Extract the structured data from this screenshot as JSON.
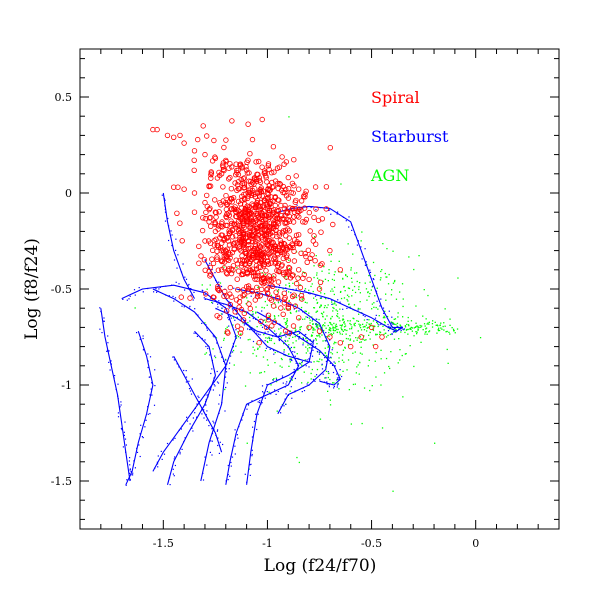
{
  "chart_data": {
    "type": "scatter",
    "title": "",
    "xlabel": "Log (f24/f70)",
    "ylabel": "Log (f8/f24)",
    "xlim": [
      -1.9,
      0.4
    ],
    "ylim": [
      -1.75,
      0.75
    ],
    "xticks": [
      -1.5,
      -1,
      -0.5,
      0
    ],
    "xtick_labels": [
      "-1.5",
      "-1",
      "-0.5",
      "0"
    ],
    "yticks": [
      0.5,
      0,
      -0.5,
      -1,
      -1.5
    ],
    "ytick_labels": [
      "0.5",
      "0",
      "-0.5",
      "-1",
      "-1.5"
    ],
    "grid": false,
    "legend_position": "top-right",
    "series": [
      {
        "name": "Spiral",
        "color": "#ff0000",
        "marker": "open-circle",
        "points": [
          [
            -1.55,
            0.33
          ],
          [
            -1.53,
            0.33
          ],
          [
            -1.48,
            0.3
          ],
          [
            -1.45,
            0.29
          ],
          [
            -1.42,
            0.3
          ],
          [
            -1.4,
            0.26
          ],
          [
            -1.35,
            0.22
          ],
          [
            -1.3,
            0.2
          ],
          [
            -1.25,
            0.18
          ],
          [
            -1.2,
            0.17
          ],
          [
            -1.15,
            0.15
          ],
          [
            -1.1,
            0.12
          ],
          [
            -1.45,
            0.03
          ],
          [
            -1.43,
            0.03
          ],
          [
            -1.4,
            0.02
          ],
          [
            -1.35,
            0.0
          ],
          [
            -1.3,
            -0.05
          ],
          [
            -1.25,
            -0.1
          ],
          [
            -1.2,
            -0.05
          ],
          [
            -1.15,
            -0.1
          ],
          [
            -1.1,
            -0.15
          ],
          [
            -1.05,
            -0.2
          ],
          [
            -1.0,
            -0.25
          ],
          [
            -0.95,
            -0.3
          ],
          [
            -0.9,
            -0.35
          ],
          [
            -0.85,
            -0.4
          ],
          [
            -0.8,
            -0.45
          ],
          [
            -0.75,
            -0.5
          ],
          [
            -1.2,
            -0.3
          ],
          [
            -1.15,
            -0.35
          ],
          [
            -1.1,
            -0.4
          ],
          [
            -1.05,
            -0.45
          ],
          [
            -1.0,
            -0.5
          ],
          [
            -0.95,
            -0.55
          ],
          [
            -0.9,
            -0.6
          ],
          [
            -0.85,
            -0.65
          ],
          [
            -0.8,
            -0.7
          ],
          [
            -0.75,
            -0.72
          ],
          [
            -0.7,
            -0.75
          ],
          [
            -0.65,
            -0.78
          ],
          [
            -0.6,
            -0.8
          ],
          [
            -0.55,
            -0.75
          ],
          [
            -0.5,
            -0.7
          ],
          [
            -0.45,
            -0.75
          ],
          [
            -0.48,
            -0.8
          ],
          [
            -0.92,
            0.15
          ],
          [
            -0.9,
            0.08
          ],
          [
            -0.88,
            0.05
          ],
          [
            -0.85,
            0.02
          ],
          [
            -0.82,
            -0.02
          ],
          [
            -0.95,
            0.05
          ],
          [
            -1.0,
            0.0
          ],
          [
            -1.05,
            -0.05
          ],
          [
            -1.12,
            0.05
          ],
          [
            -1.18,
            0.08
          ],
          [
            -1.22,
            0.1
          ],
          [
            -1.28,
            -0.15
          ],
          [
            -1.3,
            -0.25
          ],
          [
            -1.25,
            -0.2
          ],
          [
            -1.35,
            -0.1
          ],
          [
            -0.7,
            -0.3
          ],
          [
            -0.65,
            -0.4
          ],
          [
            -0.78,
            -0.25
          ],
          [
            -0.83,
            -0.15
          ],
          [
            -0.87,
            -0.1
          ]
        ],
        "cluster": {
          "center": [
            -1.05,
            -0.2
          ],
          "spread": [
            0.12,
            0.2
          ],
          "count": 900
        }
      },
      {
        "name": "Starburst",
        "color": "#0000ff",
        "marker": "curve",
        "tracks": [
          [
            [
              -1.7,
              -0.55
            ],
            [
              -1.6,
              -0.5
            ],
            [
              -1.45,
              -0.48
            ],
            [
              -1.3,
              -0.52
            ],
            [
              -1.2,
              -0.6
            ],
            [
              -1.15,
              -0.75
            ],
            [
              -1.2,
              -0.9
            ],
            [
              -1.3,
              -1.05
            ],
            [
              -1.4,
              -1.2
            ],
            [
              -1.5,
              -1.35
            ],
            [
              -1.55,
              -1.45
            ]
          ],
          [
            [
              -1.55,
              -0.5
            ],
            [
              -1.45,
              -0.55
            ],
            [
              -1.35,
              -0.62
            ],
            [
              -1.25,
              -0.75
            ],
            [
              -1.2,
              -0.9
            ],
            [
              -1.22,
              -1.1
            ],
            [
              -1.28,
              -1.3
            ],
            [
              -1.32,
              -1.5
            ]
          ],
          [
            [
              -1.3,
              -0.55
            ],
            [
              -1.2,
              -0.58
            ],
            [
              -1.1,
              -0.62
            ],
            [
              -1.0,
              -0.7
            ],
            [
              -0.9,
              -0.8
            ],
            [
              -0.85,
              -0.9
            ],
            [
              -0.9,
              -1.0
            ],
            [
              -1.0,
              -1.05
            ],
            [
              -1.1,
              -1.1
            ],
            [
              -1.15,
              -1.25
            ],
            [
              -1.18,
              -1.4
            ],
            [
              -1.2,
              -1.52
            ]
          ],
          [
            [
              -1.25,
              -0.6
            ],
            [
              -1.15,
              -0.65
            ],
            [
              -1.05,
              -0.72
            ],
            [
              -0.95,
              -0.75
            ],
            [
              -0.85,
              -0.72
            ],
            [
              -0.78,
              -0.78
            ],
            [
              -0.8,
              -0.88
            ],
            [
              -0.9,
              -0.95
            ],
            [
              -1.0,
              -1.0
            ],
            [
              -1.05,
              -1.15
            ],
            [
              -1.08,
              -1.35
            ],
            [
              -1.1,
              -1.52
            ]
          ],
          [
            [
              -1.15,
              -0.5
            ],
            [
              -1.05,
              -0.52
            ],
            [
              -0.95,
              -0.55
            ],
            [
              -0.85,
              -0.6
            ],
            [
              -0.75,
              -0.68
            ],
            [
              -0.7,
              -0.8
            ],
            [
              -0.72,
              -0.92
            ],
            [
              -0.8,
              -1.0
            ],
            [
              -0.9,
              -1.05
            ],
            [
              -0.95,
              -1.15
            ]
          ],
          [
            [
              -1.0,
              -0.48
            ],
            [
              -0.9,
              -0.5
            ],
            [
              -0.8,
              -0.52
            ],
            [
              -0.7,
              -0.55
            ],
            [
              -0.6,
              -0.6
            ],
            [
              -0.5,
              -0.65
            ],
            [
              -0.42,
              -0.7
            ],
            [
              -0.38,
              -0.72
            ],
            [
              -0.35,
              -0.7
            ]
          ],
          [
            [
              -1.05,
              -0.62
            ],
            [
              -0.95,
              -0.68
            ],
            [
              -0.85,
              -0.75
            ],
            [
              -0.75,
              -0.82
            ],
            [
              -0.68,
              -0.9
            ],
            [
              -0.65,
              -0.97
            ],
            [
              -0.68,
              -1.0
            ],
            [
              -0.75,
              -0.98
            ]
          ],
          [
            [
              -1.35,
              -0.72
            ],
            [
              -1.28,
              -0.8
            ],
            [
              -1.25,
              -0.95
            ],
            [
              -1.3,
              -1.1
            ],
            [
              -1.38,
              -1.25
            ],
            [
              -1.45,
              -1.4
            ],
            [
              -1.48,
              -1.52
            ]
          ],
          [
            [
              -1.62,
              -0.72
            ],
            [
              -1.58,
              -0.85
            ],
            [
              -1.55,
              -1.0
            ],
            [
              -1.58,
              -1.15
            ],
            [
              -1.62,
              -1.3
            ],
            [
              -1.65,
              -1.45
            ],
            [
              -1.68,
              -1.52
            ]
          ],
          [
            [
              -1.8,
              -0.6
            ],
            [
              -1.78,
              -0.75
            ],
            [
              -1.75,
              -0.9
            ],
            [
              -1.72,
              -1.05
            ],
            [
              -1.7,
              -1.2
            ],
            [
              -1.68,
              -1.35
            ],
            [
              -1.66,
              -1.5
            ]
          ],
          [
            [
              -0.95,
              -0.1
            ],
            [
              -0.88,
              -0.08
            ],
            [
              -0.8,
              -0.07
            ],
            [
              -0.7,
              -0.08
            ],
            [
              -0.6,
              -0.15
            ],
            [
              -0.55,
              -0.3
            ],
            [
              -0.5,
              -0.45
            ],
            [
              -0.45,
              -0.6
            ],
            [
              -0.4,
              -0.7
            ],
            [
              -0.35,
              -0.7
            ]
          ],
          [
            [
              -1.3,
              -0.35
            ],
            [
              -1.25,
              -0.45
            ],
            [
              -1.2,
              -0.55
            ],
            [
              -1.1,
              -0.68
            ],
            [
              -1.0,
              -0.8
            ],
            [
              -0.9,
              -0.85
            ],
            [
              -0.8,
              -0.88
            ]
          ],
          [
            [
              -1.45,
              -0.85
            ],
            [
              -1.4,
              -0.95
            ],
            [
              -1.35,
              -1.05
            ],
            [
              -1.3,
              -1.15
            ],
            [
              -1.25,
              -1.25
            ],
            [
              -1.22,
              -1.35
            ]
          ],
          [
            [
              -1.5,
              0.0
            ],
            [
              -1.48,
              -0.15
            ],
            [
              -1.45,
              -0.3
            ],
            [
              -1.4,
              -0.45
            ],
            [
              -1.35,
              -0.55
            ]
          ]
        ]
      },
      {
        "name": "AGN",
        "color": "#00ff00",
        "marker": "dot",
        "cluster": {
          "center": [
            -0.75,
            -0.68
          ],
          "spread": [
            0.22,
            0.18
          ],
          "count": 700
        },
        "band": {
          "y": -0.7,
          "x_range": [
            -0.8,
            -0.1
          ],
          "count": 200
        },
        "outliers": [
          [
            -0.9,
            0.4
          ],
          [
            -0.2,
            -1.3
          ],
          [
            -0.4,
            -1.55
          ],
          [
            0.02,
            -0.75
          ],
          [
            -0.7,
            -1.1
          ],
          [
            -0.6,
            -1.2
          ],
          [
            -1.1,
            -1.3
          ],
          [
            -0.85,
            -1.4
          ],
          [
            -0.5,
            -1.0
          ],
          [
            -0.3,
            -0.9
          ],
          [
            -0.15,
            -0.6
          ],
          [
            -0.25,
            -0.5
          ],
          [
            -0.4,
            -0.3
          ],
          [
            -0.55,
            -0.2
          ],
          [
            -0.65,
            0.05
          ]
        ]
      }
    ]
  }
}
